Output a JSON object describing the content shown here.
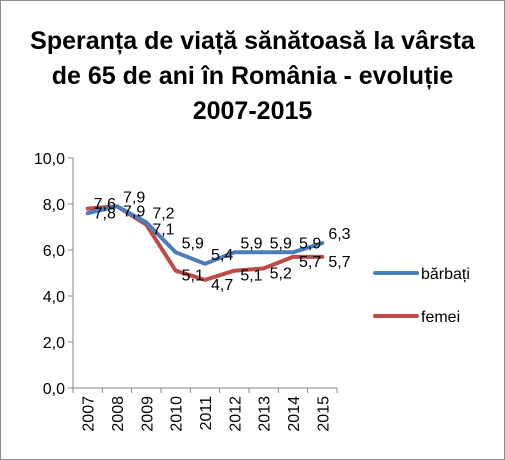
{
  "chart_data": {
    "type": "line",
    "title": "Speranța de viață sănătoasă la vârsta de 65 de ani în România - evoluție 2007-2015",
    "categories": [
      "2007",
      "2008",
      "2009",
      "2010",
      "2011",
      "2012",
      "2013",
      "2014",
      "2015"
    ],
    "ylim": [
      0,
      10
    ],
    "yticks": [
      "0,0",
      "2,0",
      "4,0",
      "6,0",
      "8,0",
      "10,0"
    ],
    "grid": false,
    "legend_position": "right",
    "series": [
      {
        "name": "bărbați",
        "color": "#4a7ebb",
        "values": [
          7.6,
          7.9,
          7.2,
          5.9,
          5.4,
          5.9,
          5.9,
          5.9,
          6.3
        ],
        "labels": [
          "7,6",
          "7,9",
          "7,2",
          "5,9",
          "5,4",
          "5,9",
          "5,9",
          "5,9",
          "6,3"
        ]
      },
      {
        "name": "femei",
        "color": "#be4b48",
        "values": [
          7.8,
          7.9,
          7.1,
          5.1,
          4.7,
          5.1,
          5.2,
          5.7,
          5.7
        ],
        "labels": [
          "7,8",
          "7,9",
          "7,1",
          "5,1",
          "4,7",
          "5,1",
          "5,2",
          "5,7",
          "5,7"
        ]
      }
    ]
  }
}
